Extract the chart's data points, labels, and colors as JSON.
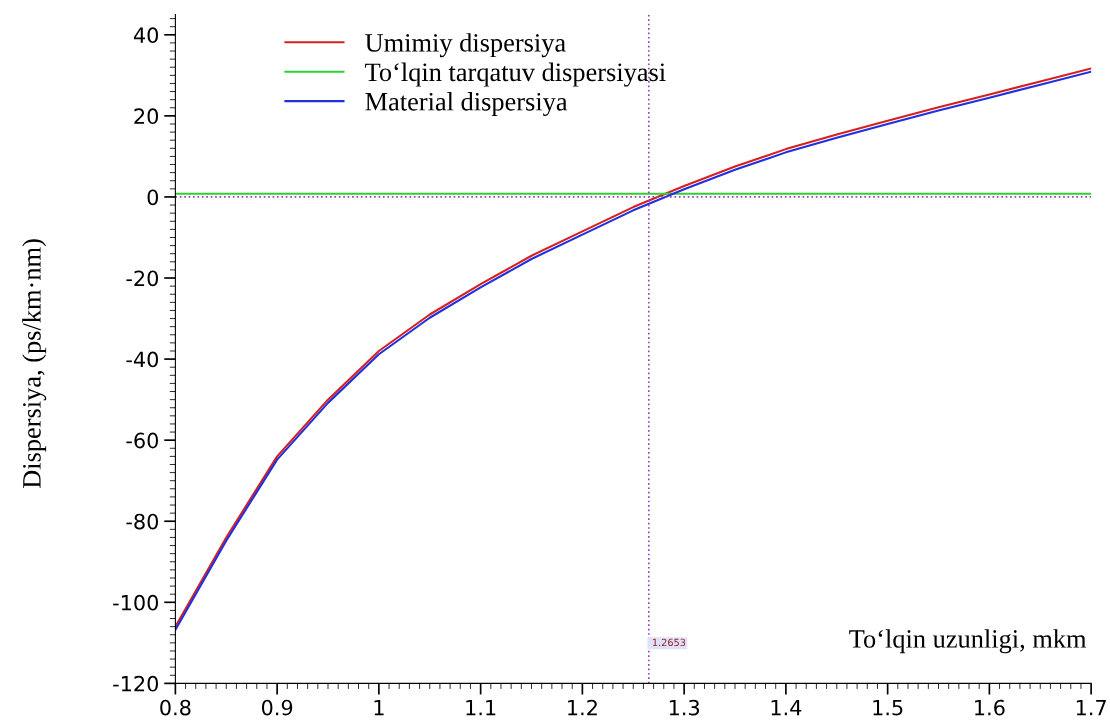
{
  "chart_data": {
    "type": "line",
    "xlabel": "To‘lqin uzunligi, mkm",
    "ylabel": "Dispersiya, (ps/km·nm)",
    "x": [
      0.8,
      0.85,
      0.9,
      0.95,
      1.0,
      1.05,
      1.1,
      1.15,
      1.2,
      1.25,
      1.3,
      1.35,
      1.4,
      1.45,
      1.5,
      1.55,
      1.6,
      1.65,
      1.7
    ],
    "series": [
      {
        "name": "Umimiy dispersiya",
        "color": "#d62020",
        "values": [
          -106,
          -84,
          -64,
          -50,
          -38,
          -29,
          -21.5,
          -14.5,
          -8.5,
          -2.5,
          2.7,
          7.5,
          11.8,
          15.4,
          18.8,
          22.1,
          25.3,
          28.5,
          31.7
        ]
      },
      {
        "name": "To‘lqin tarqatuv dispersiyasi",
        "color": "#30d030",
        "values": [
          0.8,
          0.8,
          0.8,
          0.8,
          0.8,
          0.8,
          0.8,
          0.8,
          0.8,
          0.8,
          0.8,
          0.8,
          0.8,
          0.8,
          0.8,
          0.8,
          0.8,
          0.8,
          0.8
        ]
      },
      {
        "name": "Material dispersiya",
        "color": "#2030e0",
        "values": [
          -106.8,
          -84.8,
          -64.8,
          -50.8,
          -38.8,
          -29.8,
          -22.3,
          -15.3,
          -9.3,
          -3.3,
          1.9,
          6.7,
          11.0,
          14.6,
          18.0,
          21.3,
          24.5,
          27.7,
          30.9
        ]
      }
    ],
    "xlim": [
      0.8,
      1.7
    ],
    "xticks": [
      0.8,
      0.9,
      1,
      1.1,
      1.2,
      1.3,
      1.4,
      1.5,
      1.6,
      1.7
    ],
    "ylim": [
      -120,
      45
    ],
    "yticks": [
      -120,
      -100,
      -80,
      -60,
      -40,
      -20,
      0,
      20,
      40
    ],
    "ref_lines": [
      {
        "axis": "y",
        "value": 0,
        "color": "#a040c0",
        "line_style": "dotted"
      },
      {
        "axis": "x",
        "value": 1.2653,
        "label": "1.2653",
        "color": "#a040c0",
        "line_style": "dotted"
      }
    ],
    "grid": false,
    "legend": "top left",
    "line_style": "solid",
    "marker": "none"
  }
}
